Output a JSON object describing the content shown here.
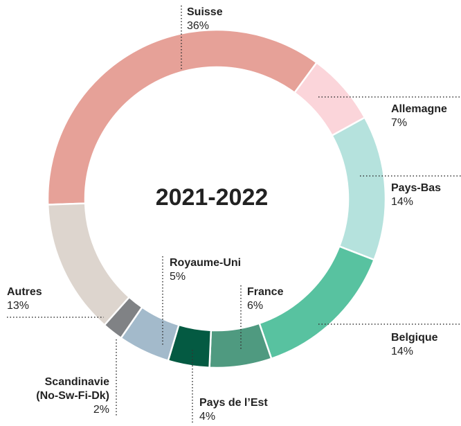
{
  "chart_data": {
    "type": "donut",
    "title": "2021-2022",
    "categories": [
      "Suisse",
      "Allemagne",
      "Pays-Bas",
      "Belgique",
      "France",
      "Pays de l’Est",
      "Royaume-Uni",
      "Scandinavie\n(No-Sw-Fi-Dk)",
      "Autres"
    ],
    "values": [
      36,
      7,
      14,
      14,
      6,
      4,
      5,
      2,
      13
    ],
    "value_labels": [
      "36%",
      "7%",
      "14%",
      "14%",
      "6%",
      "4%",
      "5%",
      "2%",
      "13%"
    ],
    "colors": [
      "#e6a198",
      "#fbd5da",
      "#b5e2dd",
      "#58c2a0",
      "#4f9a80",
      "#045a42",
      "#a3bacb",
      "#808285",
      "#ddd5ce"
    ]
  }
}
